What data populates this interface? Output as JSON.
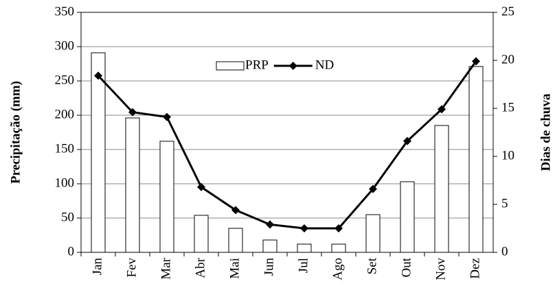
{
  "chart_data": {
    "type": "bar-line",
    "categories": [
      "Jan",
      "Fev",
      "Mar",
      "Abr",
      "Mai",
      "Jun",
      "Jul",
      "Ago",
      "Set",
      "Out",
      "Nov",
      "Dez"
    ],
    "y_label": "Precipitação (mm)",
    "y2_label": "Dias de chuva",
    "series": [
      {
        "name": "PRP",
        "type": "bar",
        "color": "#ffffff",
        "values": [
          291,
          196,
          162,
          54,
          35,
          18,
          12,
          12,
          55,
          103,
          185,
          271
        ]
      },
      {
        "name": "ND",
        "type": "line",
        "axis": "y2",
        "color": "#000000",
        "values": [
          18.4,
          14.6,
          14.1,
          6.8,
          4.4,
          2.9,
          2.5,
          2.5,
          6.6,
          11.6,
          14.9,
          19.9
        ]
      }
    ],
    "ylim": [
      0,
      350
    ],
    "yticks": [
      0,
      50,
      100,
      150,
      200,
      250,
      300,
      350
    ],
    "y2lim": [
      0,
      25
    ],
    "y2ticks": [
      0,
      5,
      10,
      15,
      20,
      25
    ],
    "grid": true,
    "legend": "upper center"
  }
}
